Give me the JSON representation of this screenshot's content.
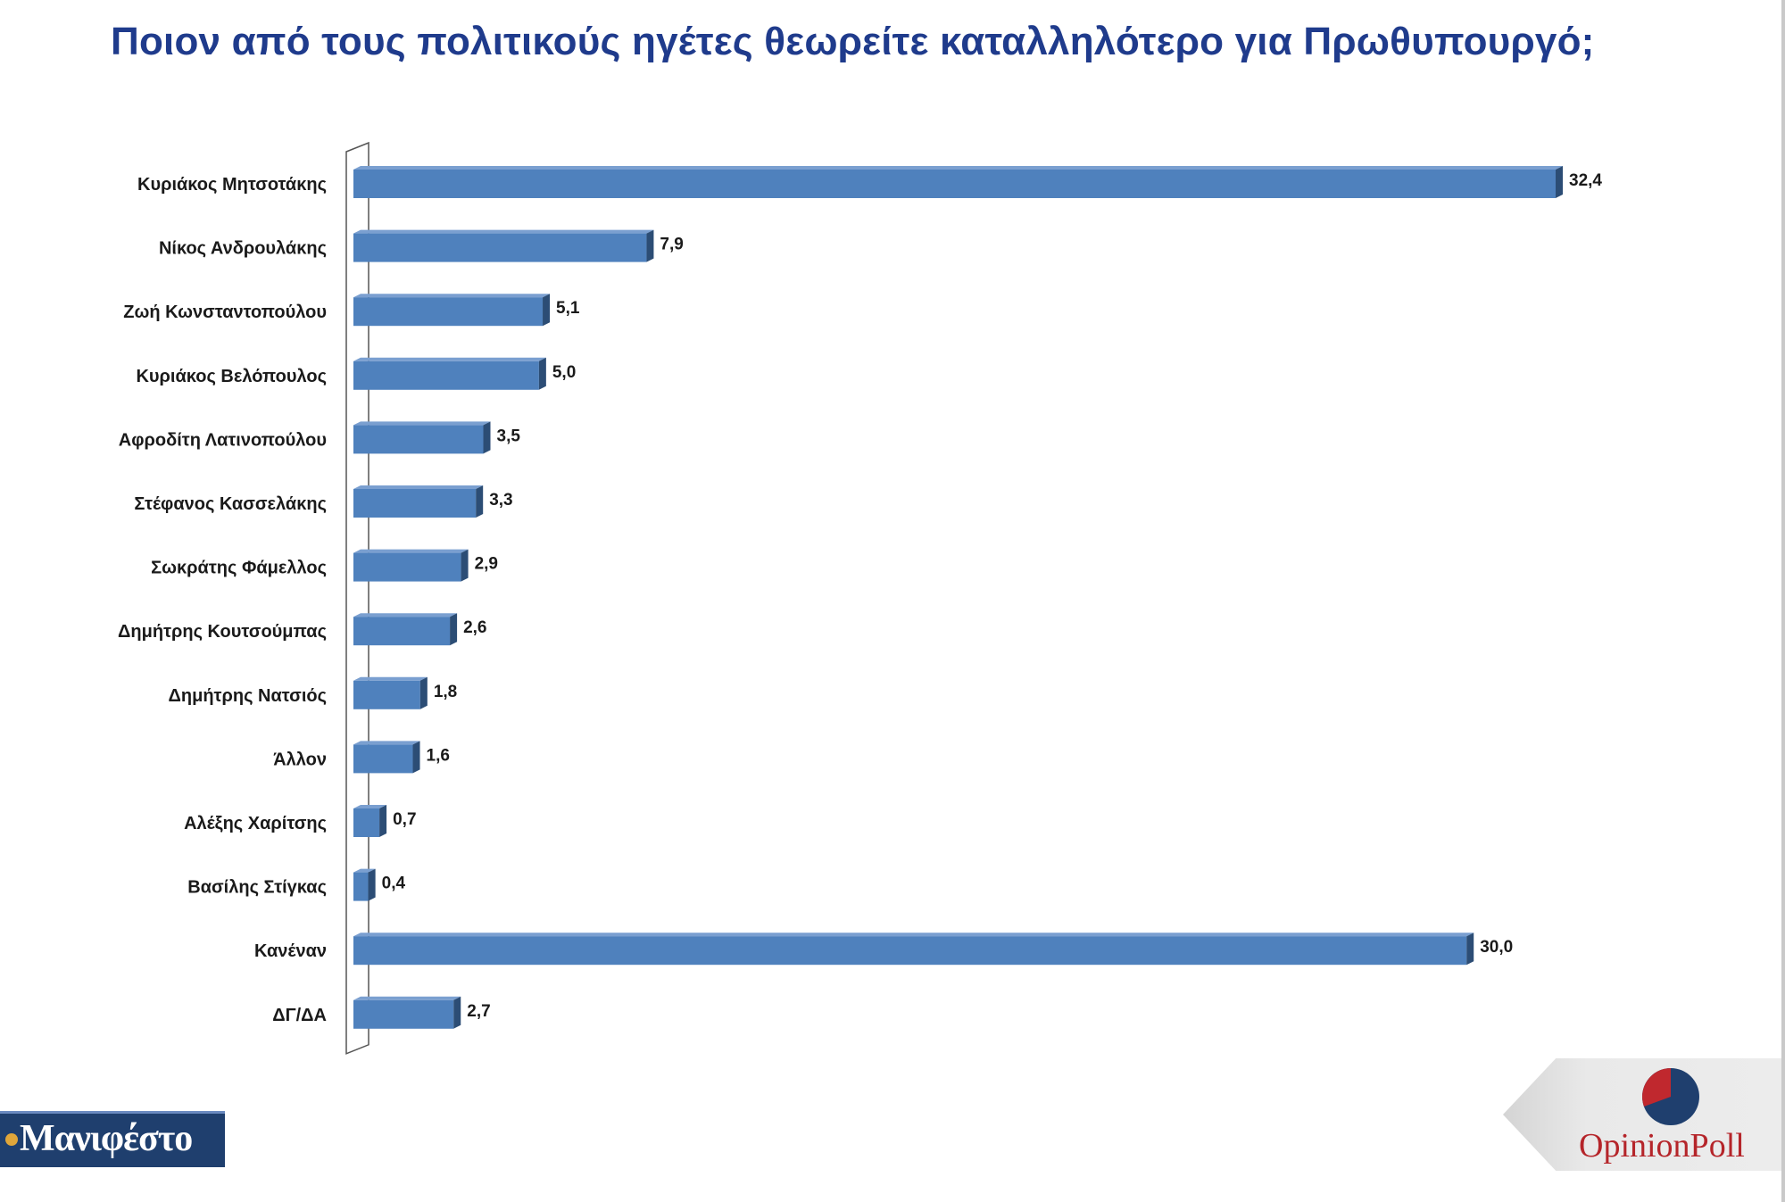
{
  "title": "Ποιον από τους πολιτικούς ηγέτες θεωρείτε καταλληλότερο για Πρωθυπουργό;",
  "chart_data": {
    "type": "bar",
    "orientation": "horizontal",
    "categories": [
      "Κυριάκος Μητσοτάκης",
      "Νίκος Ανδρουλάκης",
      "Ζωή Κωνσταντοπούλου",
      "Κυριάκος Βελόπουλος",
      "Αφροδίτη Λατινοπούλου",
      "Στέφανος Κασσελάκης",
      "Σωκράτης Φάμελλος",
      "Δημήτρης Κουτσούμπας",
      "Δημήτρης Νατσιός",
      "Άλλον",
      "Αλέξης Χαρίτσης",
      "Βασίλης Στίγκας",
      "Κανέναν",
      "ΔΓ/ΔΑ"
    ],
    "values": [
      32.4,
      7.9,
      5.1,
      5.0,
      3.5,
      3.3,
      2.9,
      2.6,
      1.8,
      1.6,
      0.7,
      0.4,
      30.0,
      2.7
    ],
    "value_labels": [
      "32,4",
      "7,9",
      "5,1",
      "5,0",
      "3,5",
      "3,3",
      "2,9",
      "2,6",
      "1,8",
      "1,6",
      "0,7",
      "0,4",
      "30,0",
      "2,7"
    ],
    "xlim": [
      0,
      32.4
    ],
    "grid": false,
    "legend": "none",
    "bar_color": "#4f81bd",
    "bar_side_color": "#2c4d75",
    "bar_top_color": "#7a9fd0"
  },
  "logos": {
    "left_text": "Μανιφέστο",
    "right_text": "OpinionPoll",
    "left_bg_color": "#1f3f6e",
    "right_text_color": "#b5252a",
    "pie_colors": [
      "#1f3f6e",
      "#c0282e"
    ]
  }
}
